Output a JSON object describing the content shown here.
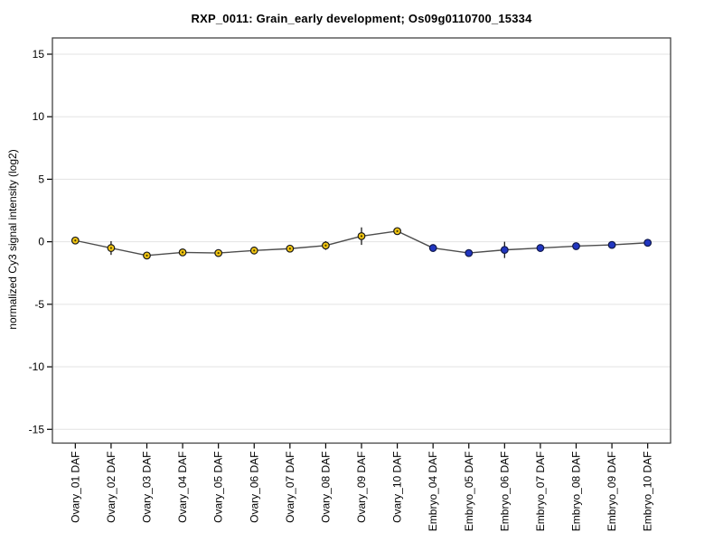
{
  "chart_data": {
    "type": "line",
    "title": "RXP_0011: Grain_early development; Os09g0110700_15334",
    "xlabel": "",
    "ylabel": "normalized Cy3 signal intensity (log2)",
    "ylim": [
      -16.1,
      16.3
    ],
    "xlim": [
      0.36,
      17.64
    ],
    "yticks": [
      15,
      10,
      5,
      0,
      -5,
      -10,
      -15
    ],
    "grid": true,
    "legend_position": "none",
    "categories": [
      "Ovary_01 DAF",
      "Ovary_02 DAF",
      "Ovary_03 DAF",
      "Ovary_04 DAF",
      "Ovary_05 DAF",
      "Ovary_06 DAF",
      "Ovary_07 DAF",
      "Ovary_08 DAF",
      "Ovary_09 DAF",
      "Ovary_10 DAF",
      "Embryo_04 DAF",
      "Embryo_05 DAF",
      "Embryo_06 DAF",
      "Embryo_07 DAF",
      "Embryo_08 DAF",
      "Embryo_09 DAF",
      "Embryo_10 DAF"
    ],
    "points": [
      {
        "label": "Ovary_01 DAF",
        "value": 0.1,
        "error": 0.2,
        "group": "Ovary"
      },
      {
        "label": "Ovary_02 DAF",
        "value": -0.5,
        "error": 0.55,
        "group": "Ovary"
      },
      {
        "label": "Ovary_03 DAF",
        "value": -1.1,
        "error": 0.1,
        "group": "Ovary"
      },
      {
        "label": "Ovary_04 DAF",
        "value": -0.85,
        "error": 0.1,
        "group": "Ovary"
      },
      {
        "label": "Ovary_05 DAF",
        "value": -0.9,
        "error": 0.1,
        "group": "Ovary"
      },
      {
        "label": "Ovary_06 DAF",
        "value": -0.7,
        "error": 0.1,
        "group": "Ovary"
      },
      {
        "label": "Ovary_07 DAF",
        "value": -0.55,
        "error": 0.1,
        "group": "Ovary"
      },
      {
        "label": "Ovary_08 DAF",
        "value": -0.3,
        "error": 0.35,
        "group": "Ovary"
      },
      {
        "label": "Ovary_09 DAF",
        "value": 0.45,
        "error": 0.7,
        "group": "Ovary"
      },
      {
        "label": "Ovary_10 DAF",
        "value": 0.85,
        "error": 0.25,
        "group": "Ovary"
      },
      {
        "label": "Embryo_04 DAF",
        "value": -0.5,
        "error": 0.1,
        "group": "Embryo"
      },
      {
        "label": "Embryo_05 DAF",
        "value": -0.9,
        "error": 0.15,
        "group": "Embryo"
      },
      {
        "label": "Embryo_06 DAF",
        "value": -0.65,
        "error": 0.65,
        "group": "Embryo"
      },
      {
        "label": "Embryo_07 DAF",
        "value": -0.5,
        "error": 0.25,
        "group": "Embryo"
      },
      {
        "label": "Embryo_08 DAF",
        "value": -0.35,
        "error": 0.1,
        "group": "Embryo"
      },
      {
        "label": "Embryo_09 DAF",
        "value": -0.25,
        "error": 0.1,
        "group": "Embryo"
      },
      {
        "label": "Embryo_10 DAF",
        "value": -0.08,
        "error": 0.1,
        "group": "Embryo"
      }
    ],
    "groups": {
      "Ovary": {
        "fill": "#F2C512",
        "stroke": "#1A1A1A",
        "center_dot": "#473F00"
      },
      "Embryo": {
        "fill": "#2136C0",
        "stroke": "#10184A",
        "center_dot": ""
      }
    },
    "colors": {
      "line": "#4D4D4D",
      "grid": "#E3E3E3",
      "box": "#434343",
      "tick": "#000000",
      "text": "#000000",
      "error_bar": "#1A1A1A",
      "background": "#FFFFFF"
    }
  }
}
